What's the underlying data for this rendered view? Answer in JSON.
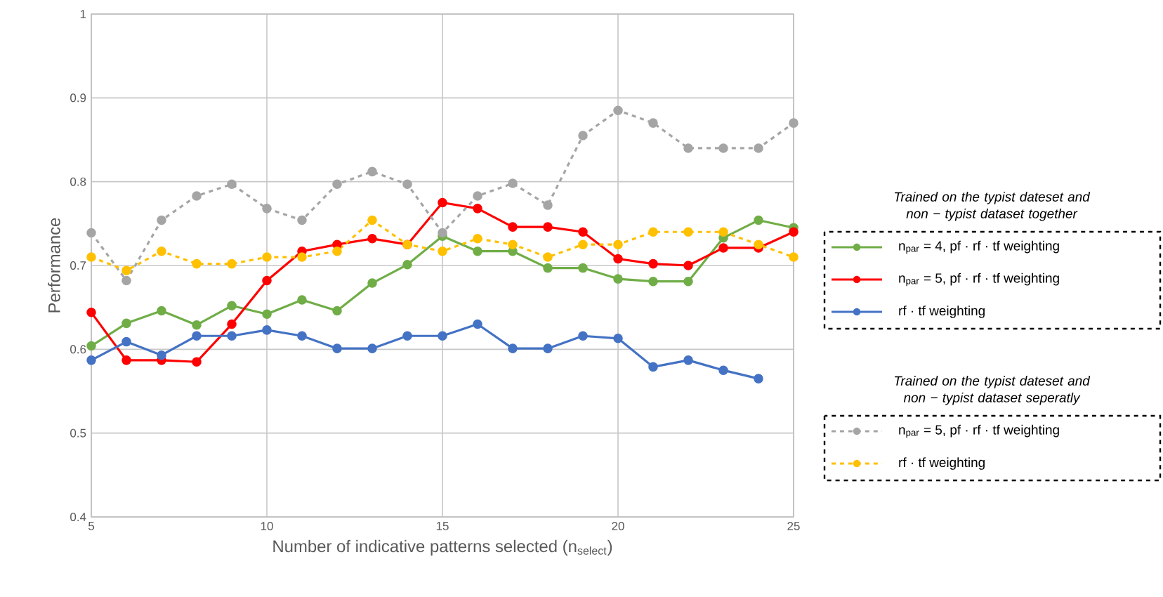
{
  "chart_data": {
    "type": "line",
    "xlabel": "Number of indicative patterns selected (n$_{select}$)",
    "ylabel": "Performance",
    "x": [
      5,
      6,
      7,
      8,
      9,
      10,
      11,
      12,
      13,
      14,
      15,
      16,
      17,
      18,
      19,
      20,
      21,
      22,
      23,
      24,
      25
    ],
    "xlim": [
      5,
      25
    ],
    "xticks": [
      5,
      10,
      15,
      20,
      25
    ],
    "ylim": [
      0.4,
      1
    ],
    "yticks": [
      0.4,
      0.5,
      0.6,
      0.7,
      0.8,
      0.9,
      1
    ],
    "grid": true,
    "legend": "right",
    "marker": "circle",
    "annotations": [
      "Trained on the typist dateset and non − typist dataset together",
      "Trained on the typist dateset and non − typist dataset seperatly"
    ],
    "series": [
      {
        "name": "n$_{par}$ = 4,  pf · rf · tf weighting",
        "color": "#70ad47",
        "line_style": "solid",
        "values": [
          0.604,
          0.631,
          0.646,
          0.629,
          0.652,
          0.642,
          0.659,
          0.646,
          0.679,
          0.701,
          0.735,
          0.717,
          0.717,
          0.697,
          0.697,
          0.684,
          0.681,
          0.681,
          0.733,
          0.754,
          0.745
        ]
      },
      {
        "name": "n$_{par}$ = 5,  pf · rf · tf weighting",
        "color": "#ff0000",
        "line_style": "solid",
        "values": [
          0.644,
          0.587,
          0.587,
          0.585,
          0.63,
          0.682,
          0.717,
          0.725,
          0.732,
          0.725,
          0.775,
          0.768,
          0.746,
          0.746,
          0.74,
          0.708,
          0.702,
          0.7,
          0.721,
          0.721,
          0.74
        ]
      },
      {
        "name": "rf · tf weighting",
        "color": "#4472c4",
        "line_style": "solid",
        "values": [
          0.587,
          0.609,
          0.593,
          0.616,
          0.616,
          0.623,
          0.616,
          0.601,
          0.601,
          0.616,
          0.616,
          0.63,
          0.601,
          0.601,
          0.616,
          0.613,
          0.579,
          0.587,
          0.575,
          0.565,
          null
        ]
      },
      {
        "name": "n$_{par}$ = 5,  pf · rf · tf weighting",
        "color": "#a5a5a5",
        "line_style": "dashed",
        "values": [
          0.739,
          0.682,
          0.754,
          0.783,
          0.797,
          0.768,
          0.754,
          0.797,
          0.812,
          0.797,
          0.739,
          0.783,
          0.798,
          0.772,
          0.855,
          0.885,
          0.87,
          0.84,
          0.84,
          0.84,
          0.87
        ]
      },
      {
        "name": "rf · tf weighting",
        "color": "#ffc000",
        "line_style": "dashed",
        "values": [
          0.71,
          0.694,
          0.717,
          0.702,
          0.702,
          0.71,
          0.71,
          0.717,
          0.754,
          0.725,
          0.717,
          0.732,
          0.725,
          0.71,
          0.725,
          0.725,
          0.74,
          0.74,
          0.74,
          0.725,
          0.71
        ]
      }
    ]
  }
}
